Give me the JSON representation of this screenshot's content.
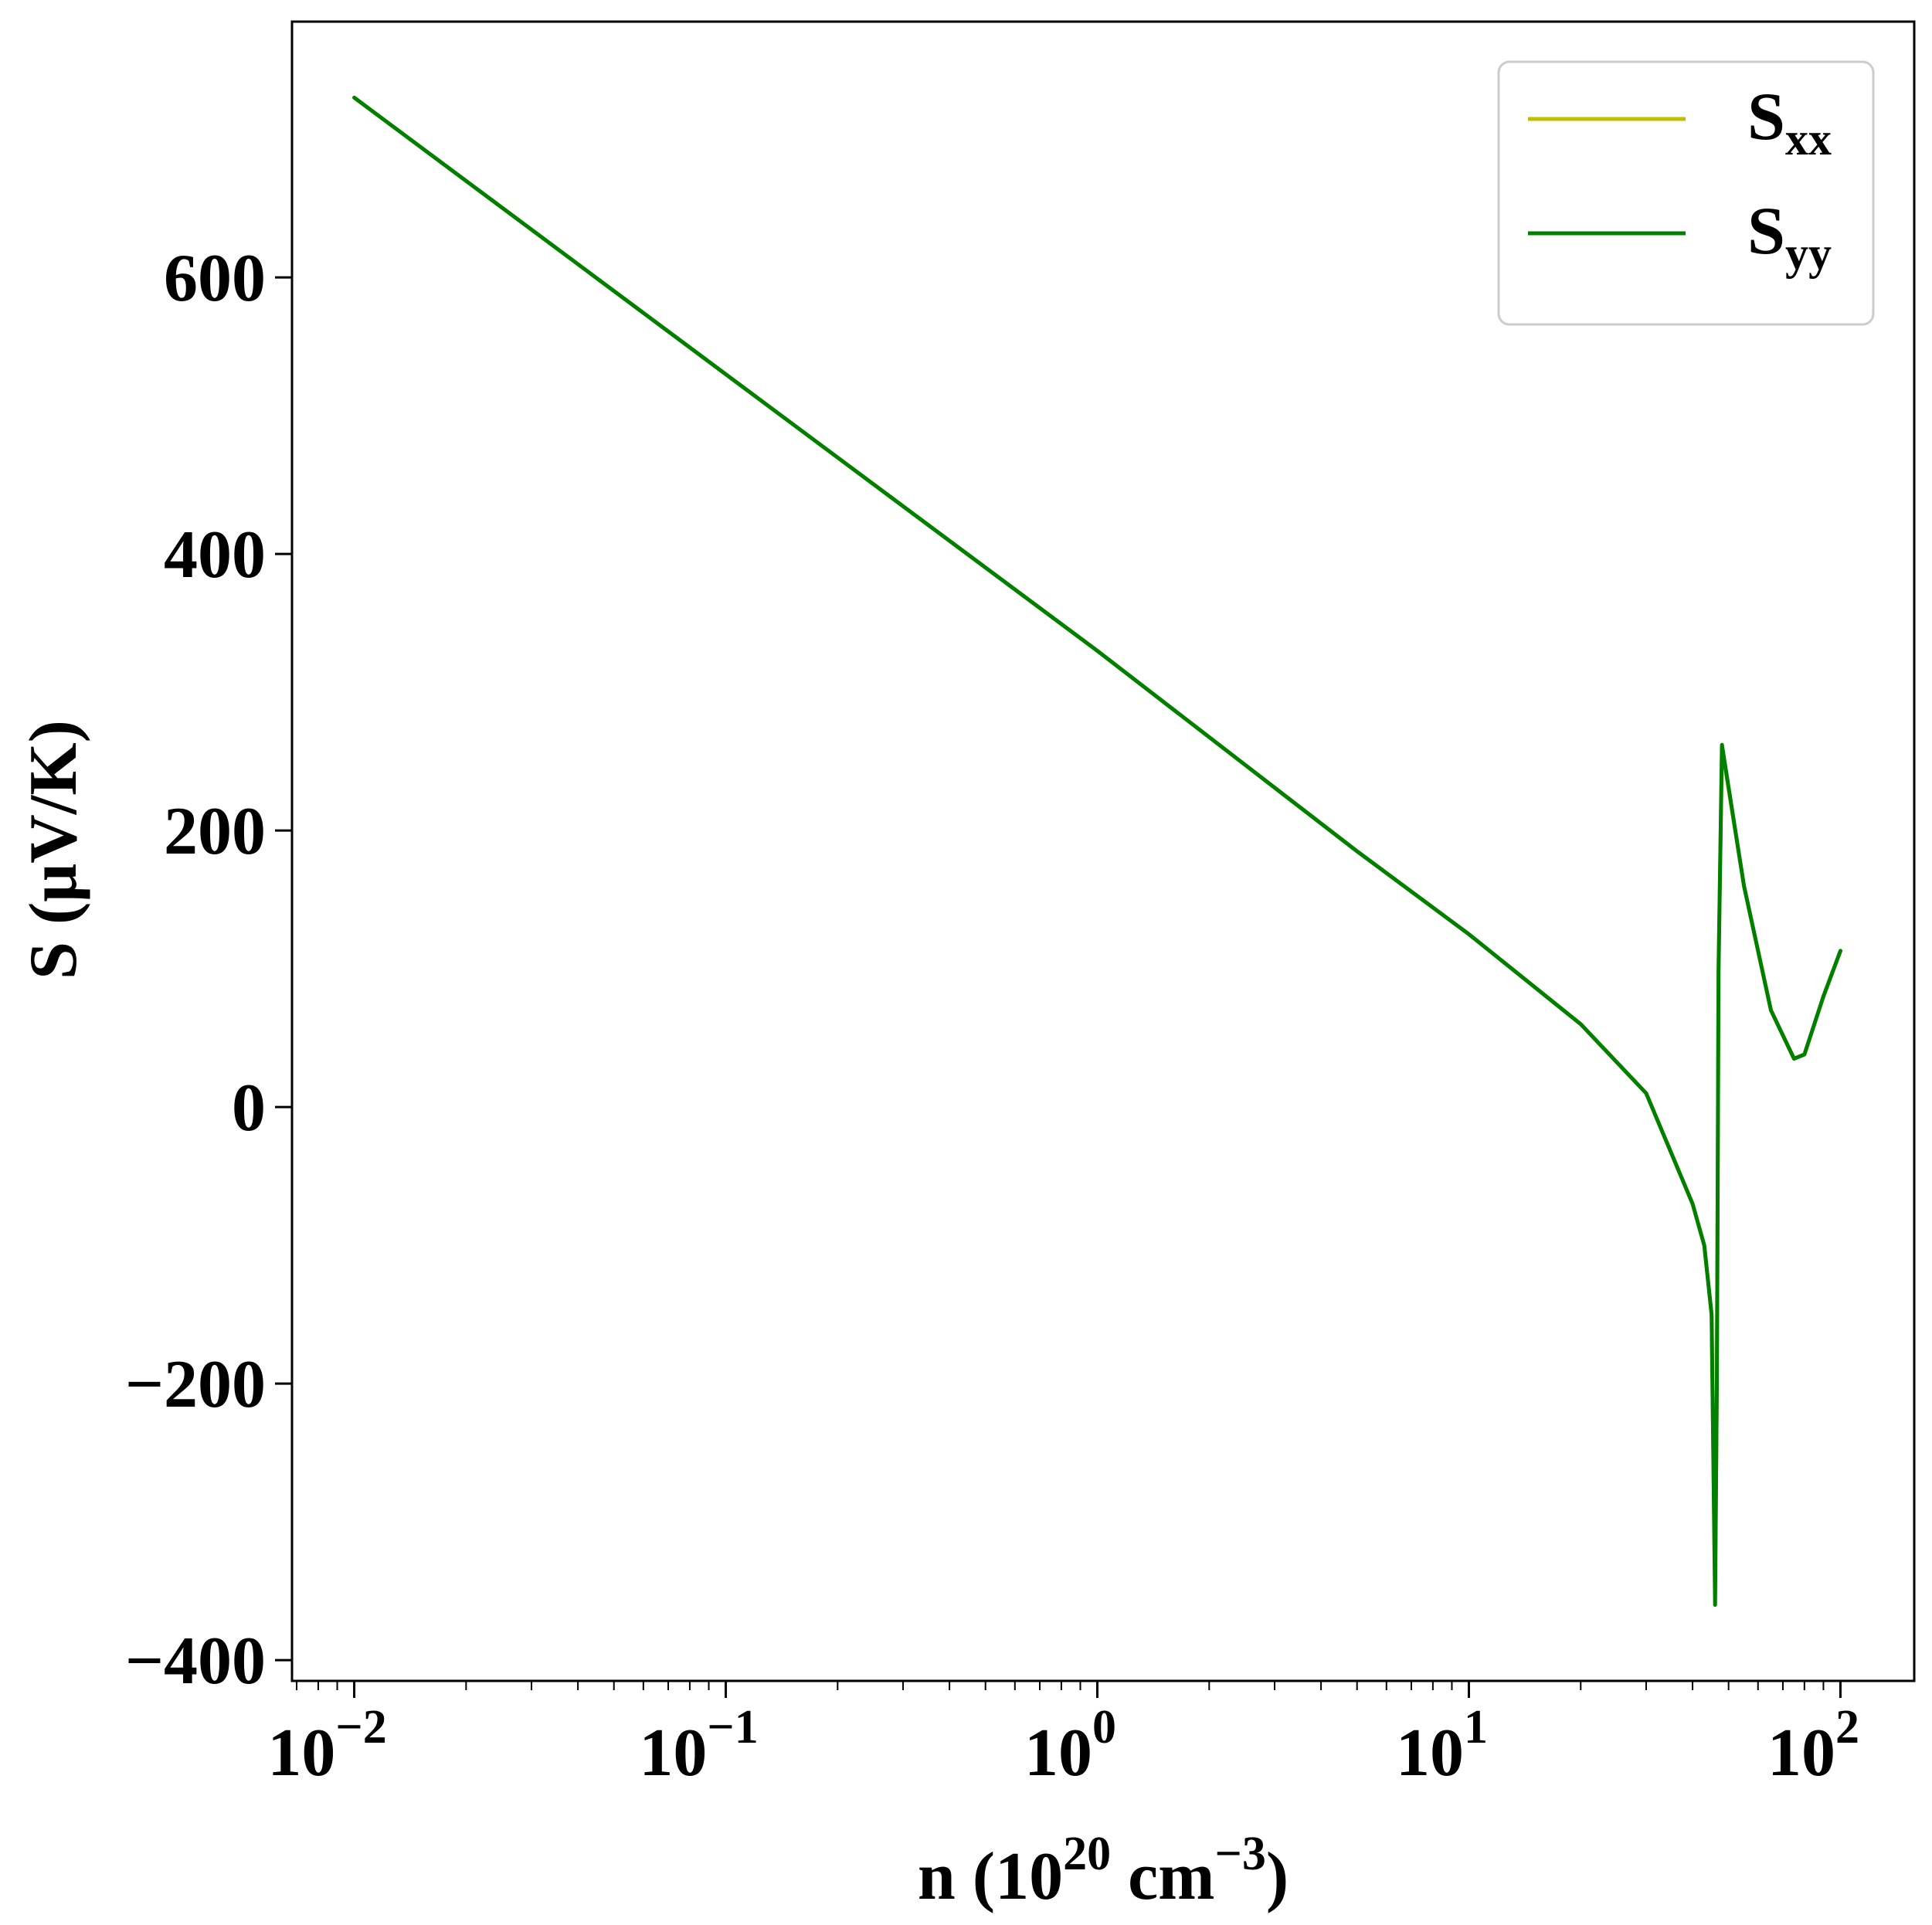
{
  "chart_data": {
    "type": "line",
    "title": "",
    "xlabel": {
      "base": "n (10",
      "sup1": "20",
      "mid": " cm",
      "sup2": "−3",
      "tail": ")"
    },
    "ylabel": "S (μV/K)",
    "x_scale": "log",
    "xlim": [
      0.0068,
      158
    ],
    "ylim": [
      -415,
      785
    ],
    "grid": false,
    "legend_position": "top-right",
    "x_ticks": [
      {
        "value": 0.01,
        "base": "10",
        "exp": "−2"
      },
      {
        "value": 0.1,
        "base": "10",
        "exp": "−1"
      },
      {
        "value": 1,
        "base": "10",
        "exp": "0"
      },
      {
        "value": 10,
        "base": "10",
        "exp": "1"
      },
      {
        "value": 100,
        "base": "10",
        "exp": "2"
      }
    ],
    "y_ticks": [
      {
        "value": -400,
        "label": "−400"
      },
      {
        "value": -200,
        "label": "−200"
      },
      {
        "value": 0,
        "label": "0"
      },
      {
        "value": 200,
        "label": "200"
      },
      {
        "value": 400,
        "label": "400"
      },
      {
        "value": 600,
        "label": "600"
      }
    ],
    "series": [
      {
        "name": "S",
        "subscript": "xx",
        "color": "#bfbf00",
        "x": [
          0.01,
          0.1,
          1,
          5,
          10,
          20,
          30,
          40,
          43,
          45,
          46,
          46.5,
          47,
          48,
          55,
          65,
          75,
          80,
          90,
          100
        ],
        "y": [
          730,
          530,
          330,
          185,
          125,
          60,
          10,
          -70,
          -100,
          -150,
          -350,
          -200,
          100,
          260,
          160,
          70,
          35,
          38,
          80,
          113
        ]
      },
      {
        "name": "S",
        "subscript": "yy",
        "color": "#007f00",
        "x": [
          0.01,
          0.1,
          1,
          5,
          10,
          20,
          30,
          40,
          43,
          45,
          46,
          46.5,
          47,
          48,
          55,
          65,
          75,
          80,
          90,
          100
        ],
        "y": [
          730,
          530,
          330,
          185,
          125,
          60,
          10,
          -70,
          -100,
          -150,
          -360,
          -200,
          100,
          262,
          160,
          70,
          35,
          38,
          80,
          113
        ]
      }
    ]
  }
}
